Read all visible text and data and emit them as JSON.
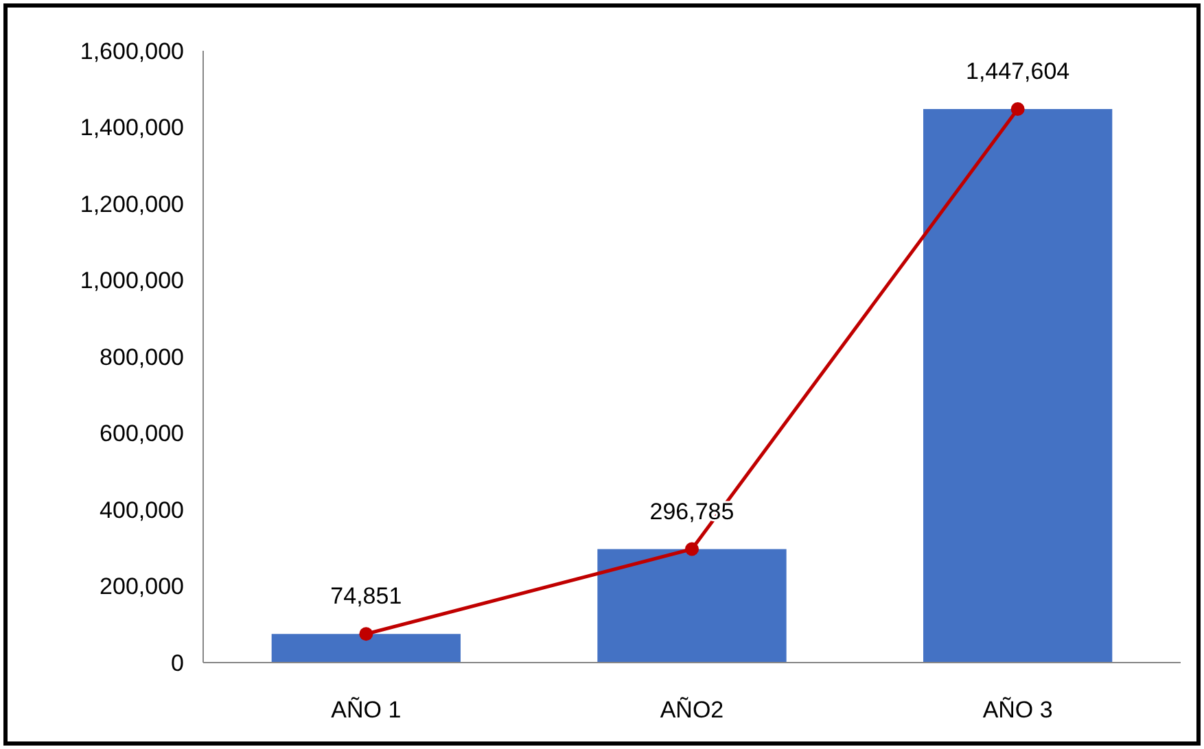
{
  "chart_data": {
    "type": "bar",
    "categories": [
      "AÑO 1",
      "AÑO2",
      "AÑO 3"
    ],
    "series": [
      {
        "color": "#4472c4",
        "values": [
          74851,
          296785,
          1447604
        ]
      },
      {
        "type": "line",
        "color": "#c00000",
        "values": [
          74851,
          296785,
          1447604
        ],
        "marker": "circle",
        "value_labels": [
          "74,851",
          "296,785",
          "1,447,604"
        ]
      }
    ],
    "ylim": [
      0,
      1600000
    ],
    "yticks": [
      0,
      {
        "value": 200000,
        "label": "200,000"
      },
      {
        "value": 400000,
        "label": "400,000"
      },
      {
        "value": 600000,
        "label": "600,000"
      },
      {
        "value": 800000,
        "label": "800,000"
      },
      {
        "value": 1000000,
        "label": "1,000,000"
      },
      {
        "value": 1200000,
        "label": "1,200,000"
      },
      {
        "value": 1400000,
        "label": "1,400,000"
      },
      {
        "value": 1600000,
        "label": "1,600,000"
      }
    ],
    "grid": false
  }
}
